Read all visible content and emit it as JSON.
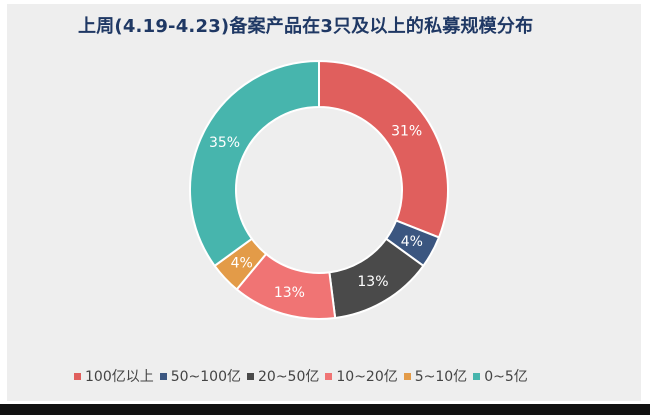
{
  "colors": {
    "title": "#1f3864",
    "background": "#eeeeee",
    "label": "#ffffff"
  },
  "chart_data": {
    "type": "pie",
    "variant": "donut",
    "title": "上周(4.19-4.23)备案产品在3只及以上的私募规模分布",
    "categories": [
      "100亿以上",
      "50~100亿",
      "20~50亿",
      "10~20亿",
      "5~10亿",
      "0~5亿"
    ],
    "values": [
      31,
      4,
      13,
      13,
      4,
      35
    ],
    "value_labels": [
      "31%",
      "4%",
      "13%",
      "13%",
      "4%",
      "35%"
    ],
    "colors": [
      "#e05f5d",
      "#3b5680",
      "#4a4a4a",
      "#f07474",
      "#e39b48",
      "#47b5ad"
    ],
    "legend_position": "bottom"
  }
}
